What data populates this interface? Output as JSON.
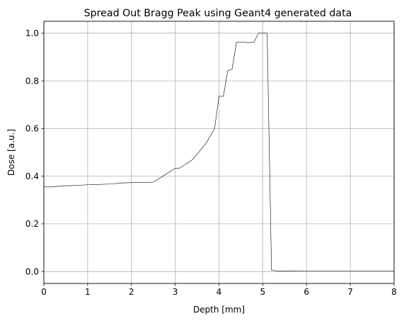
{
  "chart_data": {
    "type": "line",
    "title": "Spread Out Bragg Peak using Geant4 generated data",
    "xlabel": "Depth [mm]",
    "ylabel": "Dose [a.u.]",
    "xlim": [
      0,
      8
    ],
    "ylim": [
      -0.05,
      1.05
    ],
    "xticks": [
      0,
      1,
      2,
      3,
      4,
      5,
      6,
      7,
      8
    ],
    "xtick_labels": [
      "0",
      "1",
      "2",
      "3",
      "4",
      "5",
      "6",
      "7",
      "8"
    ],
    "yticks": [
      0.0,
      0.2,
      0.4,
      0.6,
      0.8,
      1.0
    ],
    "ytick_labels": [
      "0.0",
      "0.2",
      "0.4",
      "0.6",
      "0.8",
      "1.0"
    ],
    "grid": true,
    "series": [
      {
        "color": "#000000",
        "x": [
          0,
          0.1,
          0.5,
          0.6,
          1.0,
          1.5,
          1.8,
          2.5,
          3.0,
          3.1,
          3.4,
          3.7,
          3.9,
          4.0,
          4.1,
          4.2,
          4.3,
          4.4,
          4.6,
          4.65,
          4.8,
          4.9,
          5.1,
          5.2,
          5.3,
          6.0,
          7.0,
          8.0
        ],
        "y": [
          0.357,
          0.354,
          0.36,
          0.36,
          0.364,
          0.367,
          0.372,
          0.375,
          0.433,
          0.434,
          0.47,
          0.537,
          0.6,
          0.735,
          0.735,
          0.842,
          0.85,
          0.962,
          0.963,
          0.96,
          0.962,
          1.0,
          1.0,
          0.005,
          0.003,
          0.002,
          0.002,
          0.002
        ]
      }
    ]
  }
}
